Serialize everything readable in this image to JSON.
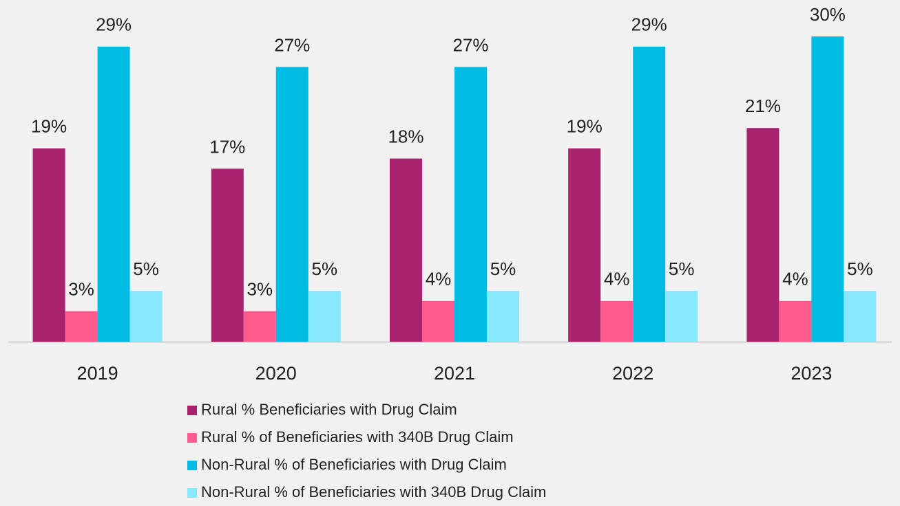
{
  "chart_data": {
    "type": "bar",
    "categories": [
      "2019",
      "2020",
      "2021",
      "2022",
      "2023"
    ],
    "series": [
      {
        "name": "Rural % Beneficiaries with Drug Claim",
        "color": "#a8226e",
        "values": [
          19,
          17,
          18,
          19,
          21
        ],
        "value_labels": [
          "19%",
          "17%",
          "18%",
          "19%",
          "21%"
        ]
      },
      {
        "name": "Rural % of Beneficiaries with 340B Drug Claim",
        "color": "#ff5b8e",
        "values": [
          3,
          3,
          4,
          4,
          4
        ],
        "value_labels": [
          "3%",
          "3%",
          "4%",
          "4%",
          "4%"
        ]
      },
      {
        "name": "Non-Rural % of Beneficiaries with Drug Claim",
        "color": "#00bce3",
        "values": [
          29,
          27,
          27,
          29,
          30
        ],
        "value_labels": [
          "29%",
          "27%",
          "27%",
          "29%",
          "30%"
        ]
      },
      {
        "name": "Non-Rural % of Beneficiaries with 340B Drug Claim",
        "color": "#87e8ff",
        "values": [
          5,
          5,
          5,
          5,
          5
        ],
        "value_labels": [
          "5%",
          "5%",
          "5%",
          "5%",
          "5%"
        ]
      }
    ],
    "legend": "bottom"
  }
}
